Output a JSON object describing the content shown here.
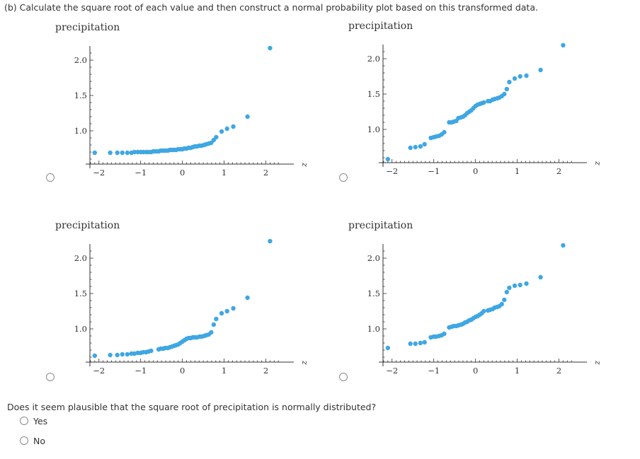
{
  "question_b": "(b) Calculate the square root of each value and then construct a normal probability plot based on this transformed data.",
  "plausible_question": "Does it seem plausible that the square root of precipitation is normally distributed?",
  "options": [
    {
      "label": "Yes"
    },
    {
      "label": "No"
    }
  ],
  "chart_data": [
    {
      "type": "scatter",
      "ylabel": "precipitation",
      "xlabel": "z",
      "xticks": [
        "-2",
        "-1",
        "0",
        "1",
        "2"
      ],
      "yticks": [
        "1.0",
        "1.5",
        "2.0"
      ],
      "xlim": [
        -2.25,
        2.5
      ],
      "ylim": [
        0.5,
        2.2
      ],
      "color": "#3fa7e3",
      "points": [
        [
          -2.1,
          0.69
        ],
        [
          -1.73,
          0.69
        ],
        [
          -1.56,
          0.69
        ],
        [
          -1.44,
          0.69
        ],
        [
          -1.32,
          0.69
        ],
        [
          -1.22,
          0.69
        ],
        [
          -1.15,
          0.7
        ],
        [
          -1.07,
          0.7
        ],
        [
          -1.0,
          0.7
        ],
        [
          -0.94,
          0.7
        ],
        [
          -0.87,
          0.7
        ],
        [
          -0.81,
          0.7
        ],
        [
          -0.75,
          0.7
        ],
        [
          -0.69,
          0.71
        ],
        [
          -0.63,
          0.71
        ],
        [
          -0.57,
          0.71
        ],
        [
          -0.52,
          0.72
        ],
        [
          -0.46,
          0.72
        ],
        [
          -0.41,
          0.72
        ],
        [
          -0.35,
          0.72
        ],
        [
          -0.3,
          0.73
        ],
        [
          -0.25,
          0.73
        ],
        [
          -0.2,
          0.73
        ],
        [
          -0.15,
          0.73
        ],
        [
          -0.1,
          0.74
        ],
        [
          -0.05,
          0.74
        ],
        [
          0.0,
          0.74
        ],
        [
          0.05,
          0.75
        ],
        [
          0.1,
          0.75
        ],
        [
          0.15,
          0.76
        ],
        [
          0.2,
          0.76
        ],
        [
          0.25,
          0.77
        ],
        [
          0.3,
          0.78
        ],
        [
          0.35,
          0.78
        ],
        [
          0.41,
          0.79
        ],
        [
          0.46,
          0.79
        ],
        [
          0.52,
          0.8
        ],
        [
          0.57,
          0.81
        ],
        [
          0.63,
          0.82
        ],
        [
          0.69,
          0.83
        ],
        [
          0.75,
          0.87
        ],
        [
          0.81,
          0.91
        ],
        [
          0.94,
          0.99
        ],
        [
          1.07,
          1.03
        ],
        [
          1.22,
          1.06
        ],
        [
          1.56,
          1.2
        ],
        [
          2.1,
          2.17
        ]
      ]
    },
    {
      "type": "scatter",
      "ylabel": "precipitation",
      "xlabel": "z",
      "xticks": [
        "-2",
        "-1",
        "0",
        "1",
        "2"
      ],
      "yticks": [
        "1.0",
        "1.5",
        "2.0"
      ],
      "xlim": [
        -2.25,
        2.5
      ],
      "ylim": [
        0.5,
        2.2
      ],
      "color": "#3fa7e3",
      "points": [
        [
          -2.1,
          0.58
        ],
        [
          -1.56,
          0.74
        ],
        [
          -1.44,
          0.75
        ],
        [
          -1.32,
          0.76
        ],
        [
          -1.22,
          0.79
        ],
        [
          -1.07,
          0.88
        ],
        [
          -1.0,
          0.89
        ],
        [
          -0.94,
          0.9
        ],
        [
          -0.87,
          0.91
        ],
        [
          -0.81,
          0.93
        ],
        [
          -0.75,
          0.96
        ],
        [
          -0.63,
          1.1
        ],
        [
          -0.57,
          1.1
        ],
        [
          -0.52,
          1.11
        ],
        [
          -0.46,
          1.12
        ],
        [
          -0.41,
          1.16
        ],
        [
          -0.35,
          1.17
        ],
        [
          -0.3,
          1.18
        ],
        [
          -0.25,
          1.2
        ],
        [
          -0.2,
          1.23
        ],
        [
          -0.15,
          1.25
        ],
        [
          -0.1,
          1.27
        ],
        [
          -0.05,
          1.3
        ],
        [
          0.0,
          1.33
        ],
        [
          0.05,
          1.35
        ],
        [
          0.1,
          1.36
        ],
        [
          0.15,
          1.37
        ],
        [
          0.2,
          1.38
        ],
        [
          0.3,
          1.4
        ],
        [
          0.35,
          1.4
        ],
        [
          0.41,
          1.42
        ],
        [
          0.46,
          1.43
        ],
        [
          0.52,
          1.44
        ],
        [
          0.57,
          1.45
        ],
        [
          0.63,
          1.47
        ],
        [
          0.69,
          1.5
        ],
        [
          0.75,
          1.57
        ],
        [
          0.81,
          1.67
        ],
        [
          0.94,
          1.72
        ],
        [
          1.07,
          1.75
        ],
        [
          1.22,
          1.76
        ],
        [
          1.56,
          1.84
        ],
        [
          2.1,
          2.19
        ]
      ]
    },
    {
      "type": "scatter",
      "ylabel": "precipitation",
      "xlabel": "z",
      "xticks": [
        "-2",
        "-1",
        "0",
        "1",
        "2"
      ],
      "yticks": [
        "1.0",
        "1.5",
        "2.0"
      ],
      "xlim": [
        -2.25,
        2.5
      ],
      "ylim": [
        0.5,
        2.2
      ],
      "color": "#3fa7e3",
      "points": [
        [
          -2.1,
          0.62
        ],
        [
          -1.73,
          0.63
        ],
        [
          -1.56,
          0.63
        ],
        [
          -1.44,
          0.64
        ],
        [
          -1.32,
          0.64
        ],
        [
          -1.22,
          0.65
        ],
        [
          -1.15,
          0.65
        ],
        [
          -1.07,
          0.66
        ],
        [
          -1.0,
          0.66
        ],
        [
          -0.94,
          0.67
        ],
        [
          -0.87,
          0.67
        ],
        [
          -0.81,
          0.68
        ],
        [
          -0.75,
          0.69
        ],
        [
          -0.57,
          0.71
        ],
        [
          -0.52,
          0.72
        ],
        [
          -0.46,
          0.72
        ],
        [
          -0.41,
          0.73
        ],
        [
          -0.35,
          0.73
        ],
        [
          -0.3,
          0.74
        ],
        [
          -0.25,
          0.75
        ],
        [
          -0.2,
          0.76
        ],
        [
          -0.15,
          0.77
        ],
        [
          -0.1,
          0.78
        ],
        [
          -0.05,
          0.8
        ],
        [
          0.0,
          0.82
        ],
        [
          0.05,
          0.84
        ],
        [
          0.1,
          0.86
        ],
        [
          0.15,
          0.87
        ],
        [
          0.2,
          0.87
        ],
        [
          0.25,
          0.88
        ],
        [
          0.3,
          0.88
        ],
        [
          0.35,
          0.88
        ],
        [
          0.41,
          0.89
        ],
        [
          0.46,
          0.89
        ],
        [
          0.52,
          0.9
        ],
        [
          0.57,
          0.91
        ],
        [
          0.63,
          0.92
        ],
        [
          0.69,
          0.95
        ],
        [
          0.75,
          1.06
        ],
        [
          0.81,
          1.14
        ],
        [
          0.94,
          1.22
        ],
        [
          1.07,
          1.25
        ],
        [
          1.22,
          1.29
        ],
        [
          1.56,
          1.44
        ],
        [
          2.1,
          2.24
        ]
      ]
    },
    {
      "type": "scatter",
      "ylabel": "precipitation",
      "xlabel": "z",
      "xticks": [
        "-2",
        "-1",
        "0",
        "1",
        "2"
      ],
      "yticks": [
        "1.0",
        "1.5",
        "2.0"
      ],
      "xlim": [
        -2.25,
        2.5
      ],
      "ylim": [
        0.5,
        2.2
      ],
      "color": "#3fa7e3",
      "points": [
        [
          -2.1,
          0.73
        ],
        [
          -1.56,
          0.79
        ],
        [
          -1.44,
          0.79
        ],
        [
          -1.32,
          0.8
        ],
        [
          -1.22,
          0.81
        ],
        [
          -1.07,
          0.88
        ],
        [
          -1.0,
          0.89
        ],
        [
          -0.94,
          0.89
        ],
        [
          -0.87,
          0.9
        ],
        [
          -0.81,
          0.91
        ],
        [
          -0.75,
          0.93
        ],
        [
          -0.63,
          1.02
        ],
        [
          -0.57,
          1.03
        ],
        [
          -0.52,
          1.04
        ],
        [
          -0.46,
          1.04
        ],
        [
          -0.41,
          1.05
        ],
        [
          -0.35,
          1.06
        ],
        [
          -0.3,
          1.07
        ],
        [
          -0.25,
          1.09
        ],
        [
          -0.2,
          1.1
        ],
        [
          -0.15,
          1.12
        ],
        [
          -0.1,
          1.13
        ],
        [
          -0.05,
          1.15
        ],
        [
          0.0,
          1.17
        ],
        [
          0.05,
          1.18
        ],
        [
          0.1,
          1.2
        ],
        [
          0.15,
          1.22
        ],
        [
          0.2,
          1.25
        ],
        [
          0.3,
          1.26
        ],
        [
          0.35,
          1.27
        ],
        [
          0.41,
          1.28
        ],
        [
          0.46,
          1.3
        ],
        [
          0.52,
          1.31
        ],
        [
          0.57,
          1.32
        ],
        [
          0.63,
          1.35
        ],
        [
          0.69,
          1.41
        ],
        [
          0.75,
          1.52
        ],
        [
          0.81,
          1.58
        ],
        [
          0.94,
          1.61
        ],
        [
          1.07,
          1.62
        ],
        [
          1.22,
          1.64
        ],
        [
          1.56,
          1.73
        ],
        [
          2.1,
          2.18
        ]
      ]
    }
  ]
}
